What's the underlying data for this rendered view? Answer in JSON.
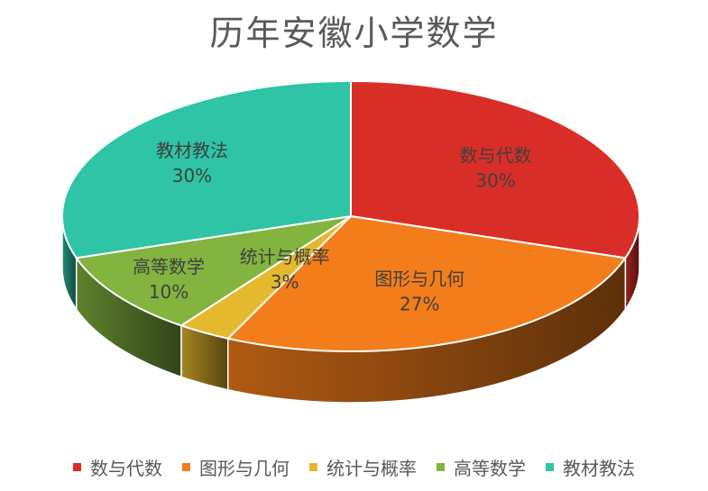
{
  "chart_data": {
    "type": "pie",
    "title": "历年安徽小学数学",
    "categories": [
      "数与代数",
      "图形与几何",
      "统计与概率",
      "高等数学",
      "教材教法"
    ],
    "values": [
      30,
      27,
      3,
      10,
      30
    ],
    "labels": [
      "30%",
      "27%",
      "3%",
      "10%",
      "30%"
    ],
    "colors": [
      "#d92e27",
      "#f47d1b",
      "#e5b92e",
      "#82b43f",
      "#2ec4a5"
    ],
    "legend_position": "bottom",
    "style": "3d-exploded-none"
  }
}
